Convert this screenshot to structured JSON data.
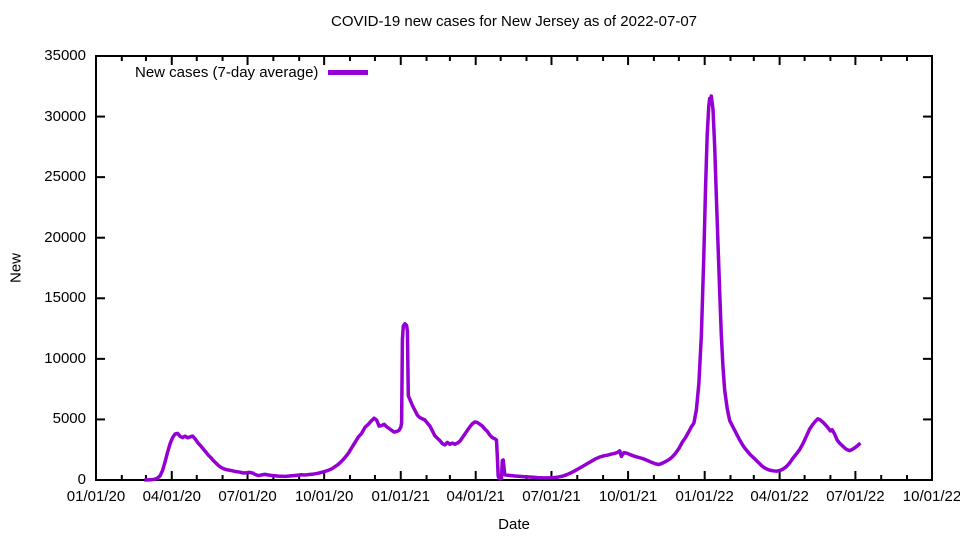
{
  "colors": {
    "line": "#9400d3",
    "axis": "#000000",
    "text": "#000000",
    "background": "#ffffff"
  },
  "chart_data": {
    "type": "line",
    "title": "COVID-19 new cases for New Jersey as of 2022-07-07",
    "xlabel": "Date",
    "ylabel": "New",
    "grid": false,
    "legend_position": "top-left-inside",
    "xlim": [
      "2020-01-01",
      "2022-10-01"
    ],
    "ylim": [
      0,
      35000
    ],
    "y_ticks": [
      0,
      5000,
      10000,
      15000,
      20000,
      25000,
      30000,
      35000
    ],
    "x_ticks": [
      {
        "date": "2020-01-01",
        "label": "01/01/20"
      },
      {
        "date": "2020-04-01",
        "label": "04/01/20"
      },
      {
        "date": "2020-07-01",
        "label": "07/01/20"
      },
      {
        "date": "2020-10-01",
        "label": "10/01/20"
      },
      {
        "date": "2021-01-01",
        "label": "01/01/21"
      },
      {
        "date": "2021-04-01",
        "label": "04/01/21"
      },
      {
        "date": "2021-07-01",
        "label": "07/01/21"
      },
      {
        "date": "2021-10-01",
        "label": "10/01/21"
      },
      {
        "date": "2022-01-01",
        "label": "01/01/22"
      },
      {
        "date": "2022-04-01",
        "label": "04/01/22"
      },
      {
        "date": "2022-07-01",
        "label": "07/01/22"
      },
      {
        "date": "2022-10-01",
        "label": "10/01/22"
      }
    ],
    "x_minor_tick_interval": "1 month",
    "series": [
      {
        "name": "New cases (7-day average)",
        "color": "#9400d3",
        "points": [
          [
            "2020-02-28",
            0
          ],
          [
            "2020-03-03",
            5
          ],
          [
            "2020-03-07",
            20
          ],
          [
            "2020-03-11",
            60
          ],
          [
            "2020-03-15",
            160
          ],
          [
            "2020-03-18",
            350
          ],
          [
            "2020-03-21",
            800
          ],
          [
            "2020-03-24",
            1500
          ],
          [
            "2020-03-27",
            2300
          ],
          [
            "2020-03-30",
            3000
          ],
          [
            "2020-04-02",
            3500
          ],
          [
            "2020-04-05",
            3800
          ],
          [
            "2020-04-08",
            3850
          ],
          [
            "2020-04-11",
            3600
          ],
          [
            "2020-04-14",
            3500
          ],
          [
            "2020-04-17",
            3620
          ],
          [
            "2020-04-20",
            3480
          ],
          [
            "2020-04-23",
            3560
          ],
          [
            "2020-04-26",
            3620
          ],
          [
            "2020-04-29",
            3400
          ],
          [
            "2020-05-02",
            3100
          ],
          [
            "2020-05-06",
            2800
          ],
          [
            "2020-05-09",
            2550
          ],
          [
            "2020-05-12",
            2300
          ],
          [
            "2020-05-15",
            2050
          ],
          [
            "2020-05-18",
            1850
          ],
          [
            "2020-05-21",
            1600
          ],
          [
            "2020-05-24",
            1400
          ],
          [
            "2020-05-27",
            1200
          ],
          [
            "2020-05-30",
            1050
          ],
          [
            "2020-06-03",
            920
          ],
          [
            "2020-06-07",
            830
          ],
          [
            "2020-06-10",
            800
          ],
          [
            "2020-06-13",
            760
          ],
          [
            "2020-06-16",
            700
          ],
          [
            "2020-06-19",
            680
          ],
          [
            "2020-06-22",
            640
          ],
          [
            "2020-06-26",
            580
          ],
          [
            "2020-06-30",
            600
          ],
          [
            "2020-07-03",
            630
          ],
          [
            "2020-07-07",
            580
          ],
          [
            "2020-07-10",
            460
          ],
          [
            "2020-07-14",
            360
          ],
          [
            "2020-07-18",
            420
          ],
          [
            "2020-07-22",
            460
          ],
          [
            "2020-07-26",
            410
          ],
          [
            "2020-07-30",
            370
          ],
          [
            "2020-08-03",
            345
          ],
          [
            "2020-08-07",
            325
          ],
          [
            "2020-08-11",
            310
          ],
          [
            "2020-08-15",
            300
          ],
          [
            "2020-08-19",
            320
          ],
          [
            "2020-08-23",
            345
          ],
          [
            "2020-08-27",
            375
          ],
          [
            "2020-08-31",
            405
          ],
          [
            "2020-09-04",
            430
          ],
          [
            "2020-09-08",
            410
          ],
          [
            "2020-09-12",
            445
          ],
          [
            "2020-09-16",
            470
          ],
          [
            "2020-09-20",
            515
          ],
          [
            "2020-09-24",
            565
          ],
          [
            "2020-09-28",
            635
          ],
          [
            "2020-10-02",
            710
          ],
          [
            "2020-10-06",
            800
          ],
          [
            "2020-10-10",
            920
          ],
          [
            "2020-10-14",
            1100
          ],
          [
            "2020-10-18",
            1300
          ],
          [
            "2020-10-22",
            1550
          ],
          [
            "2020-10-26",
            1850
          ],
          [
            "2020-10-30",
            2200
          ],
          [
            "2020-11-03",
            2650
          ],
          [
            "2020-11-07",
            3100
          ],
          [
            "2020-11-11",
            3550
          ],
          [
            "2020-11-15",
            3850
          ],
          [
            "2020-11-19",
            4350
          ],
          [
            "2020-11-23",
            4600
          ],
          [
            "2020-11-27",
            4900
          ],
          [
            "2020-11-30",
            5100
          ],
          [
            "2020-12-03",
            4950
          ],
          [
            "2020-12-06",
            4450
          ],
          [
            "2020-12-09",
            4500
          ],
          [
            "2020-12-12",
            4600
          ],
          [
            "2020-12-15",
            4400
          ],
          [
            "2020-12-18",
            4250
          ],
          [
            "2020-12-21",
            4100
          ],
          [
            "2020-12-24",
            3950
          ],
          [
            "2020-12-27",
            4000
          ],
          [
            "2020-12-30",
            4100
          ],
          [
            "2021-01-01",
            4350
          ],
          [
            "2021-01-02",
            4700
          ],
          [
            "2021-01-03",
            11600
          ],
          [
            "2021-01-04",
            12700
          ],
          [
            "2021-01-06",
            12900
          ],
          [
            "2021-01-08",
            12750
          ],
          [
            "2021-01-09",
            12300
          ],
          [
            "2021-01-10",
            6950
          ],
          [
            "2021-01-12",
            6650
          ],
          [
            "2021-01-15",
            6150
          ],
          [
            "2021-01-18",
            5750
          ],
          [
            "2021-01-21",
            5350
          ],
          [
            "2021-01-24",
            5150
          ],
          [
            "2021-01-27",
            5050
          ],
          [
            "2021-01-30",
            4950
          ],
          [
            "2021-02-02",
            4700
          ],
          [
            "2021-02-05",
            4450
          ],
          [
            "2021-02-08",
            4050
          ],
          [
            "2021-02-11",
            3650
          ],
          [
            "2021-02-14",
            3450
          ],
          [
            "2021-02-17",
            3250
          ],
          [
            "2021-02-20",
            3000
          ],
          [
            "2021-02-23",
            2900
          ],
          [
            "2021-02-26",
            3100
          ],
          [
            "2021-03-01",
            2950
          ],
          [
            "2021-03-04",
            3050
          ],
          [
            "2021-03-07",
            2950
          ],
          [
            "2021-03-10",
            3050
          ],
          [
            "2021-03-13",
            3200
          ],
          [
            "2021-03-16",
            3500
          ],
          [
            "2021-03-19",
            3800
          ],
          [
            "2021-03-22",
            4100
          ],
          [
            "2021-03-25",
            4400
          ],
          [
            "2021-03-28",
            4650
          ],
          [
            "2021-03-31",
            4800
          ],
          [
            "2021-04-03",
            4750
          ],
          [
            "2021-04-06",
            4600
          ],
          [
            "2021-04-09",
            4450
          ],
          [
            "2021-04-12",
            4200
          ],
          [
            "2021-04-15",
            4000
          ],
          [
            "2021-04-18",
            3700
          ],
          [
            "2021-04-21",
            3500
          ],
          [
            "2021-04-24",
            3400
          ],
          [
            "2021-04-26",
            3300
          ],
          [
            "2021-04-27",
            2000
          ],
          [
            "2021-04-28",
            300
          ],
          [
            "2021-04-30",
            90
          ],
          [
            "2021-05-02",
            120
          ],
          [
            "2021-05-03",
            1600
          ],
          [
            "2021-05-04",
            1650
          ],
          [
            "2021-05-06",
            420
          ],
          [
            "2021-05-10",
            390
          ],
          [
            "2021-05-14",
            360
          ],
          [
            "2021-05-18",
            330
          ],
          [
            "2021-05-22",
            310
          ],
          [
            "2021-05-26",
            290
          ],
          [
            "2021-05-30",
            265
          ],
          [
            "2021-06-04",
            245
          ],
          [
            "2021-06-09",
            220
          ],
          [
            "2021-06-14",
            200
          ],
          [
            "2021-06-19",
            185
          ],
          [
            "2021-06-24",
            172
          ],
          [
            "2021-06-29",
            178
          ],
          [
            "2021-07-04",
            195
          ],
          [
            "2021-07-09",
            240
          ],
          [
            "2021-07-14",
            310
          ],
          [
            "2021-07-19",
            430
          ],
          [
            "2021-07-24",
            580
          ],
          [
            "2021-07-29",
            760
          ],
          [
            "2021-08-03",
            950
          ],
          [
            "2021-08-08",
            1150
          ],
          [
            "2021-08-13",
            1350
          ],
          [
            "2021-08-18",
            1550
          ],
          [
            "2021-08-23",
            1750
          ],
          [
            "2021-08-28",
            1900
          ],
          [
            "2021-09-02",
            2000
          ],
          [
            "2021-09-06",
            2050
          ],
          [
            "2021-09-10",
            2120
          ],
          [
            "2021-09-14",
            2180
          ],
          [
            "2021-09-18",
            2260
          ],
          [
            "2021-09-21",
            2400
          ],
          [
            "2021-09-23",
            1950
          ],
          [
            "2021-09-26",
            2260
          ],
          [
            "2021-09-30",
            2200
          ],
          [
            "2021-10-04",
            2080
          ],
          [
            "2021-10-09",
            1960
          ],
          [
            "2021-10-14",
            1860
          ],
          [
            "2021-10-19",
            1760
          ],
          [
            "2021-10-24",
            1620
          ],
          [
            "2021-10-29",
            1460
          ],
          [
            "2021-11-03",
            1330
          ],
          [
            "2021-11-07",
            1280
          ],
          [
            "2021-11-11",
            1380
          ],
          [
            "2021-11-15",
            1520
          ],
          [
            "2021-11-19",
            1680
          ],
          [
            "2021-11-23",
            1900
          ],
          [
            "2021-11-27",
            2200
          ],
          [
            "2021-12-01",
            2600
          ],
          [
            "2021-12-05",
            3100
          ],
          [
            "2021-12-09",
            3500
          ],
          [
            "2021-12-13",
            4000
          ],
          [
            "2021-12-16",
            4400
          ],
          [
            "2021-12-19",
            4700
          ],
          [
            "2021-12-22",
            5800
          ],
          [
            "2021-12-25",
            8000
          ],
          [
            "2021-12-28",
            12000
          ],
          [
            "2021-12-31",
            18500
          ],
          [
            "2022-01-02",
            24000
          ],
          [
            "2022-01-04",
            28500
          ],
          [
            "2022-01-06",
            30900
          ],
          [
            "2022-01-07",
            31500
          ],
          [
            "2022-01-08",
            31100
          ],
          [
            "2022-01-09",
            31700
          ],
          [
            "2022-01-11",
            30600
          ],
          [
            "2022-01-13",
            27500
          ],
          [
            "2022-01-15",
            23500
          ],
          [
            "2022-01-17",
            19500
          ],
          [
            "2022-01-19",
            15500
          ],
          [
            "2022-01-21",
            12000
          ],
          [
            "2022-01-23",
            9300
          ],
          [
            "2022-01-25",
            7400
          ],
          [
            "2022-01-28",
            5900
          ],
          [
            "2022-01-31",
            4900
          ],
          [
            "2022-02-03",
            4500
          ],
          [
            "2022-02-06",
            4100
          ],
          [
            "2022-02-09",
            3700
          ],
          [
            "2022-02-12",
            3300
          ],
          [
            "2022-02-15",
            2950
          ],
          [
            "2022-02-18",
            2650
          ],
          [
            "2022-02-21",
            2400
          ],
          [
            "2022-02-24",
            2150
          ],
          [
            "2022-02-27",
            1950
          ],
          [
            "2022-03-02",
            1750
          ],
          [
            "2022-03-05",
            1550
          ],
          [
            "2022-03-08",
            1350
          ],
          [
            "2022-03-11",
            1150
          ],
          [
            "2022-03-14",
            1000
          ],
          [
            "2022-03-17",
            900
          ],
          [
            "2022-03-20",
            820
          ],
          [
            "2022-03-24",
            760
          ],
          [
            "2022-03-28",
            730
          ],
          [
            "2022-04-01",
            780
          ],
          [
            "2022-04-05",
            900
          ],
          [
            "2022-04-09",
            1100
          ],
          [
            "2022-04-13",
            1400
          ],
          [
            "2022-04-17",
            1800
          ],
          [
            "2022-04-21",
            2150
          ],
          [
            "2022-04-25",
            2500
          ],
          [
            "2022-04-29",
            3000
          ],
          [
            "2022-05-03",
            3600
          ],
          [
            "2022-05-07",
            4200
          ],
          [
            "2022-05-11",
            4600
          ],
          [
            "2022-05-14",
            4850
          ],
          [
            "2022-05-17",
            5050
          ],
          [
            "2022-05-20",
            4950
          ],
          [
            "2022-05-24",
            4700
          ],
          [
            "2022-05-28",
            4400
          ],
          [
            "2022-06-01",
            4050
          ],
          [
            "2022-06-03",
            4150
          ],
          [
            "2022-06-06",
            3800
          ],
          [
            "2022-06-09",
            3300
          ],
          [
            "2022-06-12",
            3050
          ],
          [
            "2022-06-15",
            2850
          ],
          [
            "2022-06-18",
            2650
          ],
          [
            "2022-06-21",
            2500
          ],
          [
            "2022-06-24",
            2430
          ],
          [
            "2022-06-27",
            2520
          ],
          [
            "2022-06-30",
            2650
          ],
          [
            "2022-07-03",
            2800
          ],
          [
            "2022-07-07",
            3050
          ]
        ]
      }
    ]
  }
}
